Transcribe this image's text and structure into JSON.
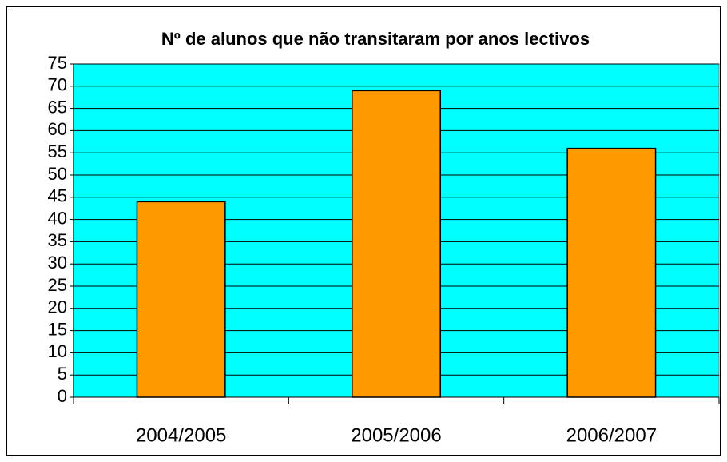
{
  "chart_data": {
    "type": "bar",
    "title": "Nº de alunos que não transitaram por anos lectivos",
    "categories": [
      "2004/2005",
      "2005/2006",
      "2006/2007"
    ],
    "values": [
      44,
      69,
      56
    ],
    "color": "#ff9900",
    "plot_background": "#00ffff",
    "ylim": [
      0,
      75
    ],
    "yticks": [
      0,
      5,
      10,
      15,
      20,
      25,
      30,
      35,
      40,
      45,
      50,
      55,
      60,
      65,
      70,
      75
    ],
    "grid": true
  }
}
